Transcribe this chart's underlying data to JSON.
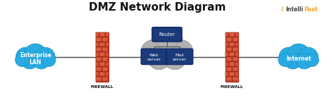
{
  "title": "DMZ Network Diagram",
  "title_fontsize": 11,
  "title_fontweight": "bold",
  "bg_color": "#ffffff",
  "cloud_color": "#29abe2",
  "cloud_edge": "#1a8fc0",
  "firewall_brick_light": "#e05a3a",
  "firewall_brick_dark": "#c0392b",
  "firewall_mortar": "#7a2010",
  "dmz_cloud_color": "#b0b0b0",
  "dmz_cloud_edge": "#909090",
  "router_box_color": "#1a3a7a",
  "router_box_edge": "#0a2060",
  "server_box_color": "#1a3a7a",
  "server_box_edge": "#0a2060",
  "line_color": "#444444",
  "text_color": "#111111",
  "box_text_color": "#ffffff",
  "firewall_label_color": "#111111",
  "enterprise_label": [
    "Enterprise",
    "LAN"
  ],
  "internet_label": "Internet",
  "fw_label": "FIREWALL",
  "router_label": "Router",
  "web_label": [
    "Web",
    "server"
  ],
  "mail_label": [
    "Mail",
    "server"
  ],
  "logo_i_color": "#f5a623",
  "logo_rest_color": "#444444"
}
